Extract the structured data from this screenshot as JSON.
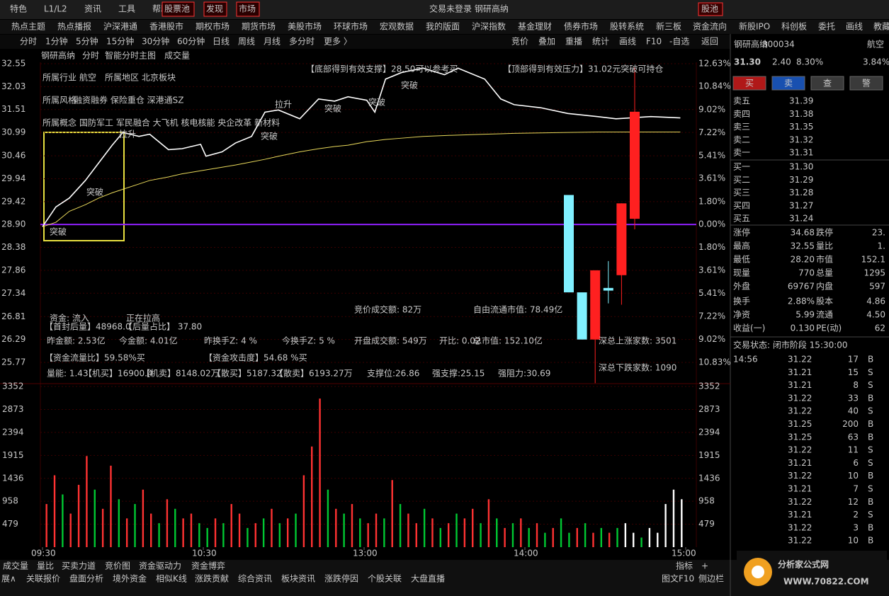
{
  "menu": {
    "items": [
      "特色",
      "L1/L2",
      "资讯",
      "工具",
      "帮助"
    ],
    "boxed": [
      "股票池",
      "发现",
      "市场"
    ],
    "status": "交易未登录  钢研高纳",
    "pool": "股池"
  },
  "nav": [
    "热点主题",
    "热点播报",
    "沪深港通",
    "香港股市",
    "期权市场",
    "期货市场",
    "美股市场",
    "环球市场",
    "宏观数据",
    "我的版面",
    "沪深指数",
    "基金理财",
    "债券市场",
    "股转系统",
    "新三板",
    "资金流向",
    "新股IPO",
    "科创板",
    "委托",
    "画线",
    "教藏"
  ],
  "toolbar": {
    "left": [
      "分时",
      "1分钟",
      "5分钟",
      "15分钟",
      "30分钟",
      "60分钟",
      "日线",
      "周线",
      "月线",
      "多分时",
      "更多 〉"
    ],
    "right": [
      "竞价",
      "叠加",
      "重播",
      "统计",
      "画线",
      "F10",
      "-自选",
      "返回"
    ]
  },
  "chart_header": [
    "钢研高纳",
    "分时",
    "智能分时主图",
    "成交量"
  ],
  "chart_data": {
    "type": "line",
    "x": [
      0,
      5,
      10,
      16,
      21,
      26,
      30,
      36,
      40,
      47,
      52,
      59,
      61,
      67,
      72,
      78,
      83,
      88,
      96,
      103,
      109,
      114,
      121,
      124,
      128,
      134,
      142,
      150,
      155,
      165,
      171,
      176,
      186,
      196,
      207,
      214,
      227,
      238
    ],
    "xlim": [
      0,
      240
    ],
    "xticks": [
      {
        "value": 0,
        "label": "09:30"
      },
      {
        "value": 60,
        "label": "10:30"
      },
      {
        "value": 120,
        "label": "13:00"
      },
      {
        "value": 180,
        "label": "14:00"
      },
      {
        "value": 240,
        "label": "15:00"
      }
    ],
    "series": [
      {
        "color": "#ffffff",
        "values": [
          28.85,
          29.3,
          29.5,
          29.9,
          30.3,
          30.7,
          30.99,
          30.9,
          30.95,
          30.6,
          30.62,
          30.72,
          30.45,
          30.55,
          30.75,
          30.9,
          31.45,
          31.5,
          31.3,
          31.75,
          31.7,
          31.8,
          31.72,
          31.45,
          32.2,
          32.35,
          32.45,
          32.3,
          32.45,
          32.2,
          31.75,
          31.62,
          31.55,
          31.42,
          31.35,
          31.3,
          31.35,
          31.32
        ]
      },
      {
        "color": "#e8d85a",
        "values": [
          28.85,
          28.95,
          29.2,
          29.35,
          29.5,
          29.62,
          29.7,
          29.82,
          29.9,
          29.98,
          30.05,
          30.12,
          30.14,
          30.2,
          30.25,
          30.32,
          30.38,
          30.45,
          30.55,
          30.62,
          30.67,
          30.7,
          30.78,
          30.8,
          30.83,
          30.86,
          30.9,
          30.92,
          30.93,
          30.95,
          30.96,
          30.97,
          30.98,
          30.99,
          31,
          31,
          31,
          31
        ]
      }
    ],
    "ylim": [
      25.32,
      32.55
    ],
    "yticks": [
      32.55,
      32.03,
      31.51,
      30.99,
      30.46,
      29.94,
      29.42,
      {
        "value": 28.9,
        "label": "28.90"
      },
      28.38,
      27.86,
      27.34,
      26.81,
      26.29,
      25.77
    ],
    "y2lim": [
      -12.39,
      12.63
    ],
    "y2ticks": [
      {
        "value": 12.63,
        "label": "12.63%"
      },
      {
        "value": 10.84,
        "label": "10.84%"
      },
      {
        "value": 9.02,
        "label": "9.02%"
      },
      {
        "value": 7.22,
        "label": "7.22%"
      },
      {
        "value": 5.41,
        "label": "5.41%"
      },
      {
        "value": 3.61,
        "label": "3.61%"
      },
      {
        "value": 1.8,
        "label": "1.80%"
      },
      {
        "value": 0,
        "label": "0.00%"
      },
      {
        "value": -1.8,
        "label": "1.80%"
      },
      {
        "value": -3.61,
        "label": "3.61%"
      },
      {
        "value": -5.41,
        "label": "5.41%"
      },
      {
        "value": -7.22,
        "label": "7.22%"
      },
      {
        "value": -9.02,
        "label": "9.02%"
      },
      {
        "value": -10.83,
        "label": "10.83%"
      }
    ],
    "grid": true,
    "candles": [
      {
        "open": 29.57,
        "high": 29.57,
        "low": 27.36,
        "close": 27.36,
        "color": "#80f0ff"
      },
      {
        "open": 27.36,
        "high": 27.36,
        "low": 26.29,
        "close": 26.29,
        "color": "#80f0ff"
      },
      {
        "open": 26.29,
        "high": 27.86,
        "low": 25.3,
        "close": 27.86,
        "color": "#ff2020"
      },
      {
        "open": 27.46,
        "high": 28.07,
        "low": 27.11,
        "close": 27.4,
        "color": "#80f0ff"
      },
      {
        "open": 27.75,
        "high": 29.38,
        "low": 27.08,
        "close": 29.38,
        "color": "#ff2020"
      },
      {
        "open": 29.03,
        "high": 32.47,
        "low": 28.79,
        "close": 31.46,
        "color": "#ff2020"
      }
    ],
    "volume": {
      "values": [
        900,
        1500,
        1100,
        700,
        1300,
        1900,
        1200,
        800,
        1700,
        1000,
        600,
        900,
        1200,
        700,
        500,
        1000,
        800,
        600,
        700,
        500,
        400,
        600,
        500,
        900,
        700,
        400,
        500,
        600,
        800,
        500,
        600,
        700,
        1500,
        2100,
        3100,
        1200,
        800,
        700,
        900,
        600,
        500,
        700,
        600,
        1400,
        900,
        700,
        500,
        800,
        600,
        400,
        500,
        700,
        600,
        800,
        500,
        1000,
        600,
        400,
        500,
        600,
        400,
        500,
        300,
        400,
        600,
        300,
        400,
        500,
        300,
        400,
        300,
        400,
        500,
        300,
        200,
        400,
        300,
        900,
        1200,
        1000
      ],
      "colors": [
        "#ff3232",
        "#ff3232",
        "#00c832",
        "#ff3232",
        "#ff3232",
        "#ff3232",
        "#00c832",
        "#ff3232",
        "#ff3232",
        "#00c832",
        "#ff3232",
        "#00c832",
        "#ff3232",
        "#ff3232",
        "#00c832",
        "#ff3232",
        "#00c832",
        "#ff3232",
        "#ff3232",
        "#00c832",
        "#00c832",
        "#ff3232",
        "#00c832",
        "#ff3232",
        "#ff3232",
        "#00c832",
        "#ff3232",
        "#00c832",
        "#ff3232",
        "#00c832",
        "#ff3232",
        "#00c832",
        "#ff3232",
        "#ff3232",
        "#ff3232",
        "#00c832",
        "#ff3232",
        "#00c832",
        "#ff3232",
        "#00c832",
        "#ff3232",
        "#ff3232",
        "#00c832",
        "#ff3232",
        "#00c832",
        "#ff3232",
        "#ff3232",
        "#00c832",
        "#ff3232",
        "#00c832",
        "#ff3232",
        "#00c832",
        "#ff3232",
        "#ff3232",
        "#00c832",
        "#ff3232",
        "#00c832",
        "#ff3232",
        "#00c832",
        "#ff3232",
        "#00c832",
        "#ff3232",
        "#00c832",
        "#ff3232",
        "#00c832",
        "#00c832",
        "#ff3232",
        "#00c832",
        "#ff3232",
        "#00c832",
        "#ff3232",
        "#00c832",
        "#ffffff",
        "#ffffff",
        "#00c832",
        "#ffffff",
        "#ffffff",
        "#ffffff",
        "#ffffff",
        "#ffffff"
      ],
      "ylim": [
        0,
        3352
      ],
      "yticks": [
        479,
        958,
        1436,
        1915,
        2394,
        2873,
        3352
      ]
    },
    "annotations": [
      {
        "text": "所属行业",
        "color": "#ff44ff"
      },
      {
        "text": "航空",
        "color": "#ffffff"
      },
      {
        "text": "所属地区",
        "color": "#ff44ff"
      },
      {
        "text": "北京板块",
        "color": "#ffffff"
      },
      {
        "text": "所属风格",
        "color": "#ff44ff"
      },
      {
        "text": "融资融券  保险重仓  深港通SZ",
        "color": "#40e0ff"
      },
      {
        "text": "所属概念",
        "color": "#ff44ff"
      },
      {
        "text": "国防军工  军民融合  大飞机  核电核能  央企改革  新材料",
        "color": "#ff44ff"
      },
      {
        "text": "【底部得到有效支撑】28.50可以参考买",
        "color": "#ffd700"
      },
      {
        "text": "【顶部得到有效压力】31.02元突破可持仓",
        "color": "#ffd700"
      },
      {
        "text": "突破",
        "color": "#ffe070"
      },
      {
        "text": "突破",
        "color": "#ffe070"
      },
      {
        "text": "突破",
        "color": "#ffe070"
      },
      {
        "text": "突破",
        "color": "#ffe070"
      },
      {
        "text": "突破",
        "color": "#ffe070"
      },
      {
        "text": "突破",
        "color": "#ffe070"
      },
      {
        "text": "拉升",
        "color": "#40e0ff"
      },
      {
        "text": "拉升",
        "color": "#40e0ff"
      },
      {
        "text": "竞价成交额: 82万",
        "color": "#ffffff"
      },
      {
        "text": "自由流通市值: 78.49亿",
        "color": "#ffffff"
      },
      {
        "text": "资金:  流入",
        "color": "#ffd700"
      },
      {
        "text": "正在拉高",
        "color": "#ffd700"
      },
      {
        "text": "【首封后量】48968.0",
        "color": "#ffffff"
      },
      {
        "text": "【后量占比】  37.80",
        "color": "#ffffff"
      },
      {
        "text": "昨金额: 2.53亿",
        "color": "#00e070"
      },
      {
        "text": "今金额: 4.01亿",
        "color": "#00e070"
      },
      {
        "text": "昨换手Z:  4  %",
        "color": "#00e070"
      },
      {
        "text": "今换手Z:  5  %",
        "color": "#00e070"
      },
      {
        "text": "开盘成交额: 549万",
        "color": "#ffffff"
      },
      {
        "text": "开比: 0.02",
        "color": "#ffffff"
      },
      {
        "text": "总市值: 152.10亿",
        "color": "#ffffff"
      },
      {
        "text": "【资金流量比】59.58%买",
        "color": "#40e0ff"
      },
      {
        "text": "【资金攻击度】54.68 %买",
        "color": "#40e0ff"
      },
      {
        "text": "深总上涨家数:  3501",
        "color": "#ff3232"
      },
      {
        "text": "深总下跌家数:  1090",
        "color": "#00e070"
      },
      {
        "text": "量能: 1.43",
        "color": "#00e070"
      },
      {
        "text": "【机买】16900.4",
        "color": "#ff3232"
      },
      {
        "text": "【机卖】8148.02万",
        "color": "#00e070"
      },
      {
        "text": "【散买】5187.32",
        "color": "#ff3232"
      },
      {
        "text": "【散卖】6193.27万",
        "color": "#00e070"
      },
      {
        "text": "支撑位:26.86",
        "color": "#00e070"
      },
      {
        "text": "强支撑:25.15",
        "color": "#ff3232"
      },
      {
        "text": "强阻力:30.69",
        "color": "#00e070"
      }
    ]
  },
  "quote": {
    "name": "钢研高纳",
    "code": "300034",
    "sector": "航空",
    "price": "31.30",
    "change": "2.40",
    "pct": "8.30%",
    "sector_pct": "3.84%",
    "buttons": [
      "买",
      "卖",
      "查",
      "警"
    ],
    "book": [
      [
        "卖五",
        "31.39"
      ],
      [
        "卖四",
        "31.38"
      ],
      [
        "卖三",
        "31.35"
      ],
      [
        "卖二",
        "31.32"
      ],
      [
        "卖一",
        "31.31"
      ],
      [
        "买一",
        "31.30"
      ],
      [
        "买二",
        "31.29"
      ],
      [
        "买三",
        "31.28"
      ],
      [
        "买四",
        "31.27"
      ],
      [
        "买五",
        "31.24"
      ]
    ],
    "stats": [
      [
        "涨停",
        "34.68",
        "跌停",
        "23."
      ],
      [
        "最高",
        "32.55",
        "量比",
        "1."
      ],
      [
        "最低",
        "28.20",
        "市值",
        "152.1"
      ],
      [
        "现量",
        "770",
        "总量",
        "1295"
      ],
      [
        "外盘",
        "69767",
        "内盘",
        "597"
      ],
      [
        "换手",
        "2.88%",
        "股本",
        "4.86"
      ],
      [
        "净资",
        "5.99",
        "流通",
        "4.50"
      ],
      [
        "收益(一)",
        "0.130",
        "PE(动)",
        "62"
      ]
    ],
    "status": "交易状态: 闭市阶段 15:30:00",
    "trade_time": "14:56",
    "trades": [
      [
        "31.22",
        "17",
        "B"
      ],
      [
        "31.21",
        "15",
        "S"
      ],
      [
        "31.21",
        "8",
        "S"
      ],
      [
        "31.22",
        "33",
        "B"
      ],
      [
        "31.22",
        "40",
        "S"
      ],
      [
        "31.25",
        "200",
        "B"
      ],
      [
        "31.25",
        "63",
        "B"
      ],
      [
        "31.22",
        "11",
        "S"
      ],
      [
        "31.21",
        "6",
        "S"
      ],
      [
        "31.22",
        "10",
        "B"
      ],
      [
        "31.21",
        "7",
        "S"
      ],
      [
        "31.22",
        "12",
        "B"
      ],
      [
        "31.21",
        "2",
        "S"
      ],
      [
        "31.22",
        "3",
        "B"
      ],
      [
        "31.22",
        "10",
        "B"
      ]
    ]
  },
  "tabs": [
    "成交量",
    "量比",
    "买卖力道",
    "竞价图",
    "资金驱动力",
    "资金博弈"
  ],
  "tabs_right": [
    "指标",
    "+"
  ],
  "bottom": [
    "展∧",
    "关联报价",
    "盘面分析",
    "境外资金",
    "相似K线",
    "涨跌贡献",
    "综合资讯",
    "板块资讯",
    "涨跌停因",
    "个股关联",
    "大盘直播"
  ],
  "bottom_right": [
    "图文F10",
    "侧边栏"
  ],
  "logo": {
    "title": "分析家公式网",
    "url": "WWW.70822.COM"
  }
}
